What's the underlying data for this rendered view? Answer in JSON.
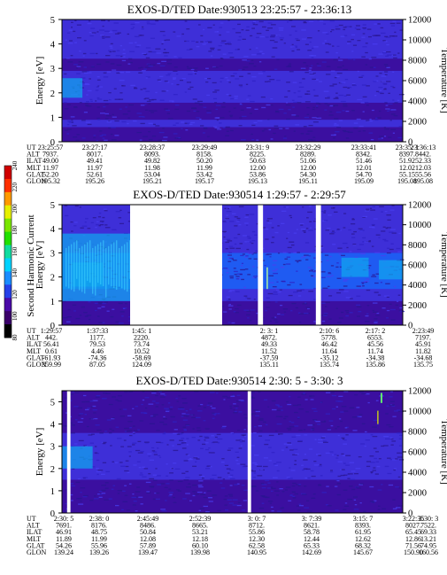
{
  "chart_data": [
    {
      "type": "heatmap",
      "title": "EXOS-D/TED  Date:930513  23:25:57 - 23:36:13",
      "ylabel": "Energy [eV]",
      "ylabel_right": "Temperature [K]",
      "ylim": [
        0,
        5
      ],
      "ylim_right": [
        0,
        12000
      ],
      "yticks": [
        "0",
        "1",
        "2",
        "3",
        "4",
        "5"
      ],
      "yticks_right": [
        "0",
        "2000",
        "4000",
        "6000",
        "8000",
        "10000",
        "12000"
      ],
      "bands": [
        {
          "emin": 0.0,
          "emax": 0.6,
          "level": "low"
        },
        {
          "emin": 0.6,
          "emax": 0.9,
          "level": "mid"
        },
        {
          "emin": 0.9,
          "emax": 1.6,
          "level": "low"
        },
        {
          "emin": 1.6,
          "emax": 2.9,
          "level": "mid"
        },
        {
          "emin": 2.9,
          "emax": 3.4,
          "level": "low"
        },
        {
          "emin": 3.4,
          "emax": 5.0,
          "level": "mid"
        }
      ],
      "hot_spots": [
        {
          "tmin": 0.0,
          "tmax": 0.06,
          "emin": 1.8,
          "emax": 2.6
        }
      ],
      "gaps": [],
      "ephemeris": {
        "labels": [
          "UT",
          "ALT",
          "ILAT",
          "MLT",
          "GLAT",
          "GLON"
        ],
        "columns": [
          [
            "23:25:57",
            "7937.",
            "49.00",
            "11.97",
            "52.20",
            "195.32"
          ],
          [
            "23:27:17",
            "8017.",
            "49.41",
            "11.97",
            "52.61",
            "195.26"
          ],
          [
            "23:28:37",
            "8093.",
            "49.82",
            "11.98",
            "53.04",
            "195.21"
          ],
          [
            "23:29:49",
            "8158.",
            "50.20",
            "11.99",
            "53.42",
            "195.17"
          ],
          [
            "23:31: 9",
            "8225.",
            "50.63",
            "12.00",
            "53.86",
            "195.13"
          ],
          [
            "23:32:29",
            "8289.",
            "51.06",
            "12.00",
            "54.30",
            "195.11"
          ],
          [
            "23:33:41",
            "8342.",
            "51.46",
            "12.01",
            "54.70",
            "195.09"
          ],
          [
            "23:35: 1",
            "8397.",
            "51.92",
            "12.02",
            "55.15",
            "195.08"
          ],
          [
            "23:36:13",
            "8442.",
            "52.33",
            "12.03",
            "55.56",
            "195.08"
          ]
        ]
      }
    },
    {
      "type": "heatmap",
      "title": "EXOS-D/TED  Date:930514  1:29:57 - 2:29:57",
      "ylabel": "Energy [eV]",
      "ylabel_right": "Temperature [K]",
      "ylim": [
        0,
        5
      ],
      "ylim_right": [
        0,
        12000
      ],
      "yticks": [
        "0",
        "1",
        "2",
        "3",
        "4",
        "5"
      ],
      "yticks_right": [
        "0",
        "2000",
        "4000",
        "6000",
        "8000",
        "10000",
        "12000"
      ],
      "bands": [
        {
          "emin": 0.0,
          "emax": 1.0,
          "level": "low"
        },
        {
          "emin": 1.0,
          "emax": 1.5,
          "level": "mid"
        },
        {
          "emin": 1.5,
          "emax": 3.0,
          "level": "high"
        },
        {
          "emin": 3.0,
          "emax": 5.0,
          "level": "mid"
        }
      ],
      "hot_spots": [
        {
          "tmin": 0.0,
          "tmax": 0.2,
          "emin": 1.0,
          "emax": 3.8
        },
        {
          "tmin": 0.03,
          "tmax": 0.12,
          "emin": 1.6,
          "emax": 2.6
        },
        {
          "tmin": 0.82,
          "tmax": 0.9,
          "emin": 2.0,
          "emax": 2.8
        },
        {
          "tmin": 0.93,
          "tmax": 1.0,
          "emin": 1.9,
          "emax": 2.7
        }
      ],
      "gaps": [
        [
          0.2,
          0.47
        ],
        [
          0.575,
          0.59
        ],
        [
          0.745,
          0.76
        ]
      ],
      "ephemeris": {
        "labels": [
          "UT",
          "ALT",
          "ILAT",
          "MLT",
          "GLAT",
          "GLON"
        ],
        "columns": [
          [
            "1:29:57",
            "442.",
            "56.41",
            "0.61",
            "-61.93",
            "359.99"
          ],
          [
            "1:37:33",
            "1177.",
            "79.53",
            "4.46",
            "-74.36",
            "87.05"
          ],
          [
            "1:45: 1",
            "2220.",
            "73.74",
            "10.52",
            "-58.69",
            "124.09"
          ],
          [
            "2: 3: 1",
            "4872.",
            "49.33",
            "11.52",
            "-37.59",
            "135.11"
          ],
          [
            "2:10: 6",
            "5778.",
            "46.42",
            "11.64",
            "-35.12",
            "135.74"
          ],
          [
            "2:17: 2",
            "6553.",
            "45.56",
            "11.74",
            "-34.38",
            "135.86"
          ],
          [
            "2:23:49",
            "7197.",
            "45.91",
            "11.82",
            "-34.68",
            "135.75"
          ]
        ]
      }
    },
    {
      "type": "heatmap",
      "title": "EXOS-D/TED  Date:930514  2:30: 5 - 3:30: 3",
      "ylabel": "Energy [eV]",
      "ylabel_right": "Temperature [K]",
      "ylim": [
        0,
        5.5
      ],
      "ylim_right": [
        0,
        12000
      ],
      "yticks": [
        "0",
        "1",
        "2",
        "3",
        "4",
        "5"
      ],
      "yticks_right": [
        "0",
        "2000",
        "4000",
        "6000",
        "8000",
        "10000",
        "12000"
      ],
      "bands": [
        {
          "emin": 0.0,
          "emax": 1.5,
          "level": "low"
        },
        {
          "emin": 1.5,
          "emax": 3.6,
          "level": "mid"
        },
        {
          "emin": 3.6,
          "emax": 5.5,
          "level": "low"
        }
      ],
      "hot_spots": [
        {
          "tmin": 0.0,
          "tmax": 0.09,
          "emin": 2.0,
          "emax": 3.0
        }
      ],
      "gaps": [
        [
          0.015,
          0.025
        ],
        [
          0.545,
          0.555
        ]
      ],
      "ephemeris": {
        "labels": [
          "UT",
          "ALT",
          "ILAT",
          "MLT",
          "GLAT",
          "GLON"
        ],
        "columns": [
          [
            "2:30: 5",
            "7691.",
            "46.91",
            "11.89",
            "54.26",
            "139.24"
          ],
          [
            "2:38: 0",
            "8176.",
            "48.75",
            "11.99",
            "55.96",
            "139.26"
          ],
          [
            "2:45:49",
            "8486.",
            "50.84",
            "12.08",
            "57.89",
            "139.47"
          ],
          [
            "2:52:39",
            "8665.",
            "53.21",
            "12.18",
            "60.10",
            "139.98"
          ],
          [
            "3: 0: 7",
            "8712.",
            "55.86",
            "12.30",
            "62.58",
            "140.95"
          ],
          [
            "3: 7:39",
            "8621.",
            "58.78",
            "12.44",
            "65.33",
            "142.69"
          ],
          [
            "3:15: 7",
            "8393.",
            "61.95",
            "12.62",
            "68.32",
            "145.67"
          ],
          [
            "3:22:35",
            "8027.",
            "65.45",
            "12.86",
            "71.56",
            "150.90"
          ],
          [
            "3:30: 3",
            "7522.",
            "69.33",
            "13.21",
            "74.95",
            "160.56"
          ]
        ]
      }
    }
  ],
  "colorbar": {
    "label": "Second Harmonic Current",
    "ticks": [
      "80",
      "100",
      "120",
      "140",
      "160",
      "180",
      "200",
      "220",
      "240"
    ],
    "colors": [
      "#000000",
      "#3a006a",
      "#4a0aa8",
      "#2540e8",
      "#1a8cff",
      "#00d2ff",
      "#10dca0",
      "#22e000",
      "#7ae600",
      "#e6f000",
      "#ff9a00",
      "#ff3000",
      "#d00000"
    ]
  },
  "colors": {
    "low": "#3b0fa0",
    "mid": "#3e2fd8",
    "high": "#1f5bf2",
    "hot": "#10a8f0",
    "background": "#ffffff"
  }
}
